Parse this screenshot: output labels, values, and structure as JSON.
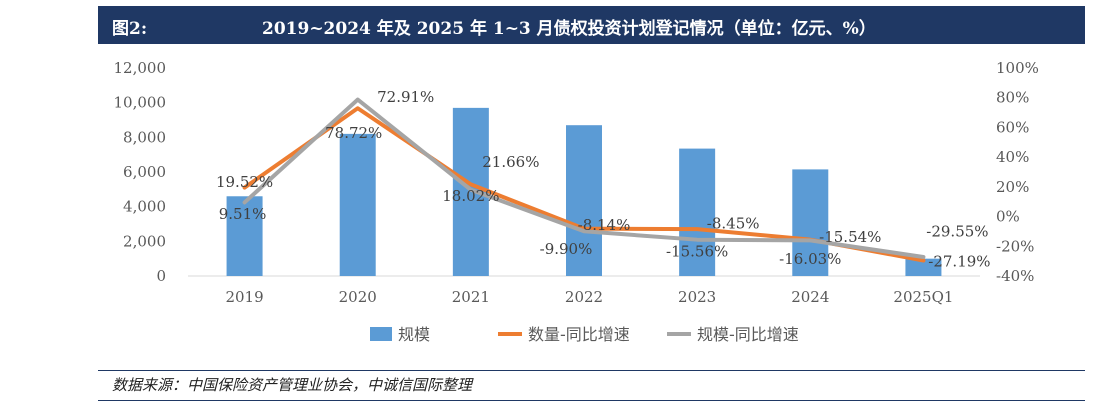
{
  "header": {
    "figure_label": "图2:",
    "title": "2019~2024 年及 2025 年 1~3 月债权投资计划登记情况（单位：亿元、%）"
  },
  "source": "数据来源：中国保险资产管理业协会，中诚信国际整理",
  "colors": {
    "bar": "#5b9bd5",
    "count_line": "#ed7d31",
    "scale_line": "#a5a5a5",
    "header_bg": "#1f3864"
  },
  "chart_data": {
    "type": "bar",
    "categories": [
      "2019",
      "2020",
      "2021",
      "2022",
      "2023",
      "2024",
      "2025Q1"
    ],
    "series": [
      {
        "name": "规模",
        "type": "bar",
        "axis": "left",
        "values": [
          4600,
          8200,
          9700,
          8700,
          7350,
          6150,
          1000
        ]
      },
      {
        "name": "数量-同比增速",
        "type": "line",
        "axis": "right",
        "values": [
          19.52,
          72.91,
          21.66,
          -8.14,
          -8.45,
          -15.54,
          -29.55
        ]
      },
      {
        "name": "规模-同比增速",
        "type": "line",
        "axis": "right",
        "values": [
          9.51,
          78.72,
          18.02,
          -9.9,
          -15.56,
          -16.03,
          -27.19
        ]
      }
    ],
    "y_left": {
      "range": [
        0,
        12000
      ],
      "ticks": [
        "0",
        "2,000",
        "4,000",
        "6,000",
        "8,000",
        "10,000",
        "12,000"
      ]
    },
    "y_right": {
      "range": [
        -40,
        100
      ],
      "ticks": [
        "-40%",
        "-20%",
        "0%",
        "20%",
        "40%",
        "60%",
        "80%",
        "100%"
      ]
    },
    "labels": [
      {
        "text": "19.52%",
        "i": 0,
        "dx": 0,
        "dy": -8
      },
      {
        "text": "9.51%",
        "i": 0,
        "dx": -2,
        "dy": 24
      },
      {
        "text": "78.72%",
        "i": 1,
        "dx": -4,
        "dy": 34
      },
      {
        "text": "72.91%",
        "i": 1,
        "dx": 48,
        "dy": -2
      },
      {
        "text": "21.66%",
        "i": 2,
        "dx": 40,
        "dy": -20
      },
      {
        "text": "18.02%",
        "i": 2,
        "dx": 0,
        "dy": 14
      },
      {
        "text": "-8.14%",
        "i": 3,
        "dx": 20,
        "dy": 0
      },
      {
        "text": "-9.90%",
        "i": 3,
        "dx": -18,
        "dy": 24
      },
      {
        "text": "-8.45%",
        "i": 4,
        "dx": 36,
        "dy": -6
      },
      {
        "text": "-15.56%",
        "i": 4,
        "dx": 0,
        "dy": 22
      },
      {
        "text": "-15.54%",
        "i": 5,
        "dx": 40,
        "dy": 2
      },
      {
        "text": "-16.03%",
        "i": 5,
        "dx": 0,
        "dy": 24
      },
      {
        "text": "-29.55%",
        "i": 6,
        "dx": 34,
        "dy": -22
      },
      {
        "text": "-27.19%",
        "i": 6,
        "dx": 36,
        "dy": 8
      }
    ],
    "legend_position": "bottom",
    "grid": false
  }
}
